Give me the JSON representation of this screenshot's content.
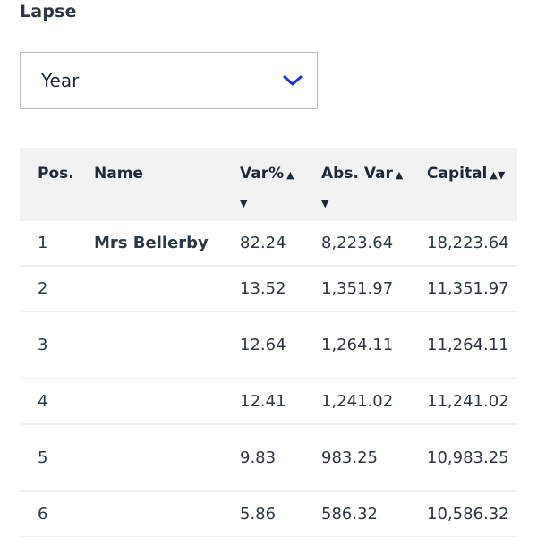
{
  "lapse": {
    "label": "Lapse",
    "selected": "Year"
  },
  "table": {
    "headers": {
      "pos": "Pos.",
      "name": "Name",
      "var_pct": "Var%",
      "abs_var": "Abs. Var",
      "capital": "Capital"
    },
    "sort_icons": {
      "up": "▲",
      "down": "▼",
      "updown": "▲▼"
    },
    "rows": [
      {
        "pos": "1",
        "name": "Mrs Bellerby",
        "var_pct": "82.24",
        "abs_var": "8,223.64",
        "capital": "18,223.64"
      },
      {
        "pos": "2",
        "name": "",
        "var_pct": "13.52",
        "abs_var": "1,351.97",
        "capital": "11,351.97"
      },
      {
        "pos": "3",
        "name": "",
        "var_pct": "12.64",
        "abs_var": "1,264.11",
        "capital": "11,264.11"
      },
      {
        "pos": "4",
        "name": "",
        "var_pct": "12.41",
        "abs_var": "1,241.02",
        "capital": "11,241.02"
      },
      {
        "pos": "5",
        "name": "",
        "var_pct": "9.83",
        "abs_var": "983.25",
        "capital": "10,983.25"
      },
      {
        "pos": "6",
        "name": "",
        "var_pct": "5.86",
        "abs_var": "586.32",
        "capital": "10,586.32"
      }
    ]
  },
  "colors": {
    "accent": "#1a2fd6",
    "header_bg": "#f1f2f4",
    "text": "#1f2a36"
  }
}
